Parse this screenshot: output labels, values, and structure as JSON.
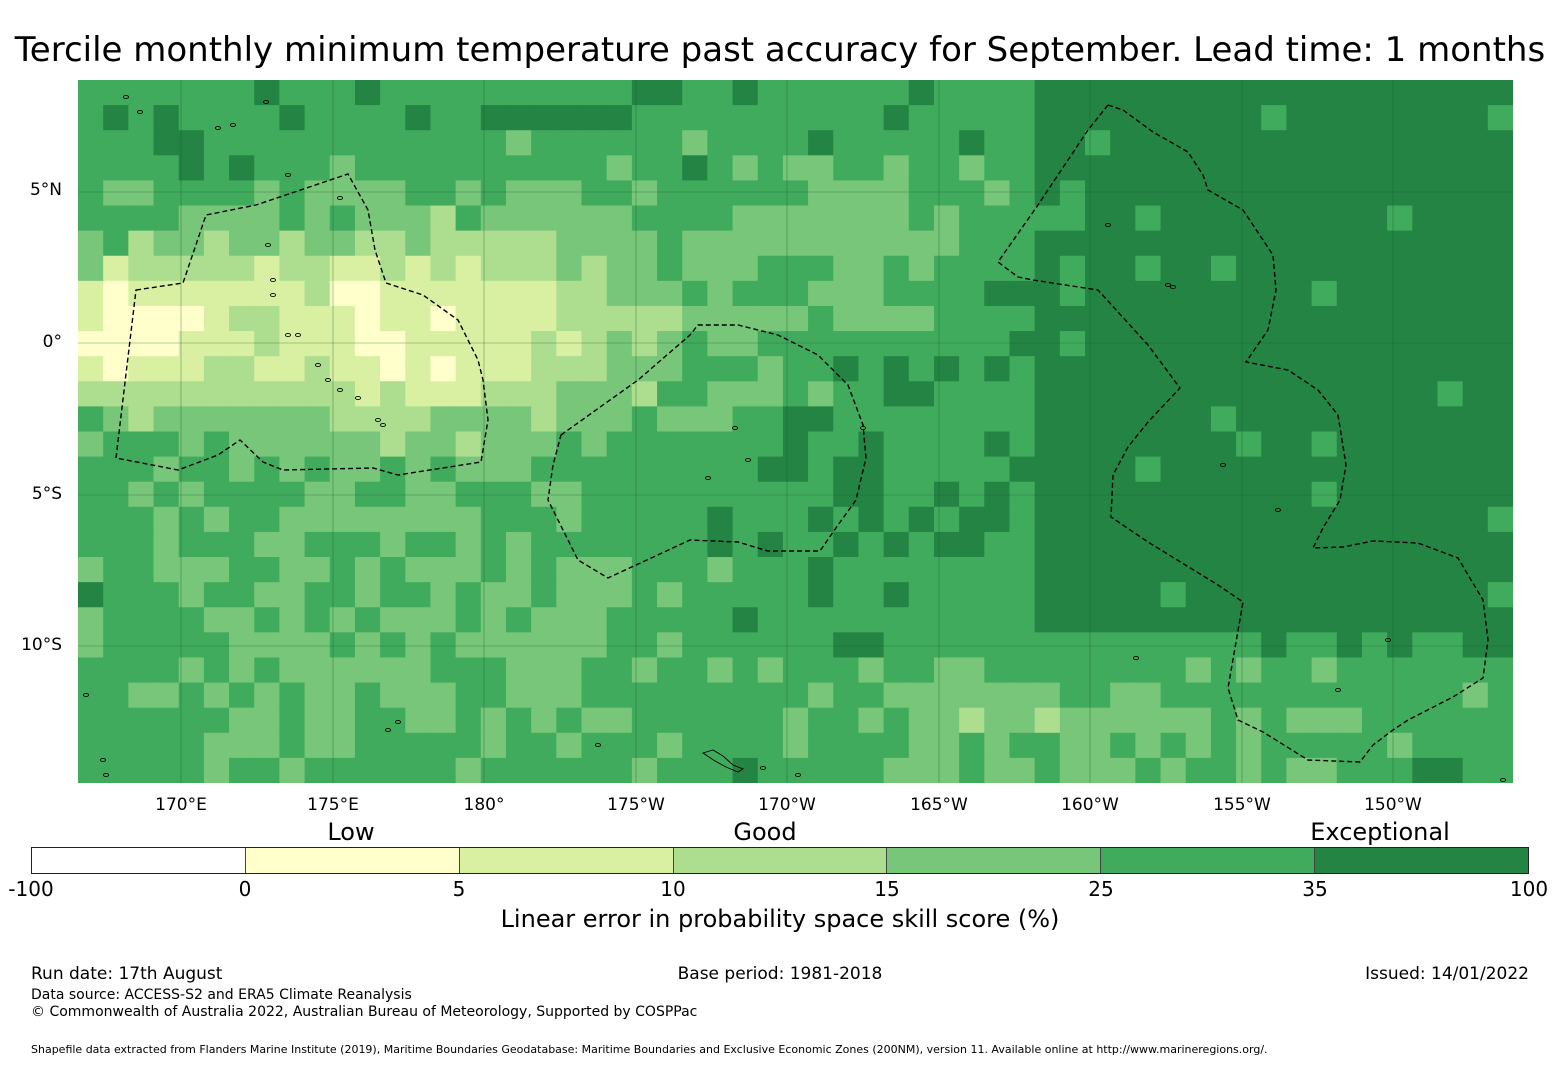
{
  "title": "Tercile monthly minimum temperature past accuracy for September. Lead time: 1 months",
  "map": {
    "lat_labels": [
      "5°N",
      "0°",
      "5°S",
      "10°S"
    ],
    "lon_labels": [
      "170°E",
      "175°E",
      "180°",
      "175°W",
      "170°W",
      "165°W",
      "160°W",
      "155°W",
      "150°W"
    ],
    "palette": [
      "#ffffff",
      "#ffffcc",
      "#d9f0a3",
      "#addd8e",
      "#78c679",
      "#41ab5d",
      "#238443"
    ],
    "gridline_color": "#1a5c2e",
    "boundary_style": "dashed"
  },
  "legend": {
    "categories": [
      "Low",
      "Good",
      "Exceptional"
    ],
    "ticks": [
      "-100",
      "0",
      "5",
      "10",
      "15",
      "25",
      "35",
      "100"
    ],
    "colors": [
      "#ffffff",
      "#ffffcc",
      "#d9f0a3",
      "#addd8e",
      "#78c679",
      "#41ab5d",
      "#238443"
    ],
    "label": "Linear error in probability space skill score (%)"
  },
  "footer": {
    "run_date": "Run date: 17th August",
    "base_period": "Base period: 1981-2018",
    "issued": "Issued: 14/01/2022",
    "data_source": "Data source: ACCESS-S2 and ERA5 Climate Reanalysis",
    "copyright": "© Commonwealth of Australia 2022, Australian Bureau of Meteorology, Supported by COSPPac",
    "shapefile": "Shapefile data extracted from Flanders Marine Institute (2019), Maritime Boundaries Geodatabase: Maritime Boundaries and Exclusive Economic Zones (200NM), version 11. Available online at http://www.marineregions.org/."
  }
}
